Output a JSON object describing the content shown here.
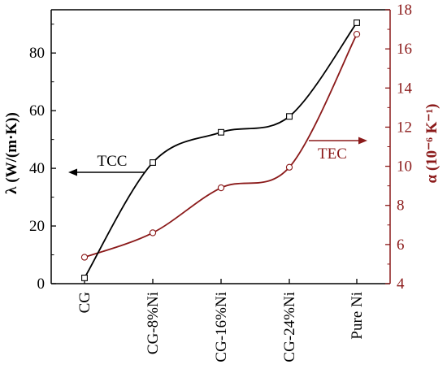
{
  "chart_data": {
    "type": "line",
    "categories": [
      "CG",
      "CG-8%Ni",
      "CG-16%Ni",
      "CG-24%Ni",
      "Pure Ni"
    ],
    "series": [
      {
        "name": "TCC",
        "axis": "left",
        "values": [
          2,
          42,
          52.5,
          58,
          90.5
        ],
        "color": "#000000",
        "marker": "square"
      },
      {
        "name": "TEC",
        "axis": "right",
        "values": [
          5.35,
          6.6,
          8.9,
          9.95,
          16.75
        ],
        "color": "#8b1a1a",
        "marker": "circle"
      }
    ],
    "ylabel": "λ (W/(m·K))",
    "y2label": "α (10⁻⁶ K⁻¹)",
    "ylim": [
      0,
      95
    ],
    "y2lim": [
      4,
      18
    ],
    "yticks": [
      0,
      20,
      40,
      60,
      80
    ],
    "y2ticks": [
      4,
      6,
      8,
      10,
      12,
      14,
      16,
      18
    ],
    "annotations": [
      {
        "text": "TCC",
        "arrow": "left",
        "axis": "left"
      },
      {
        "text": "TEC",
        "arrow": "right",
        "axis": "right"
      }
    ]
  }
}
